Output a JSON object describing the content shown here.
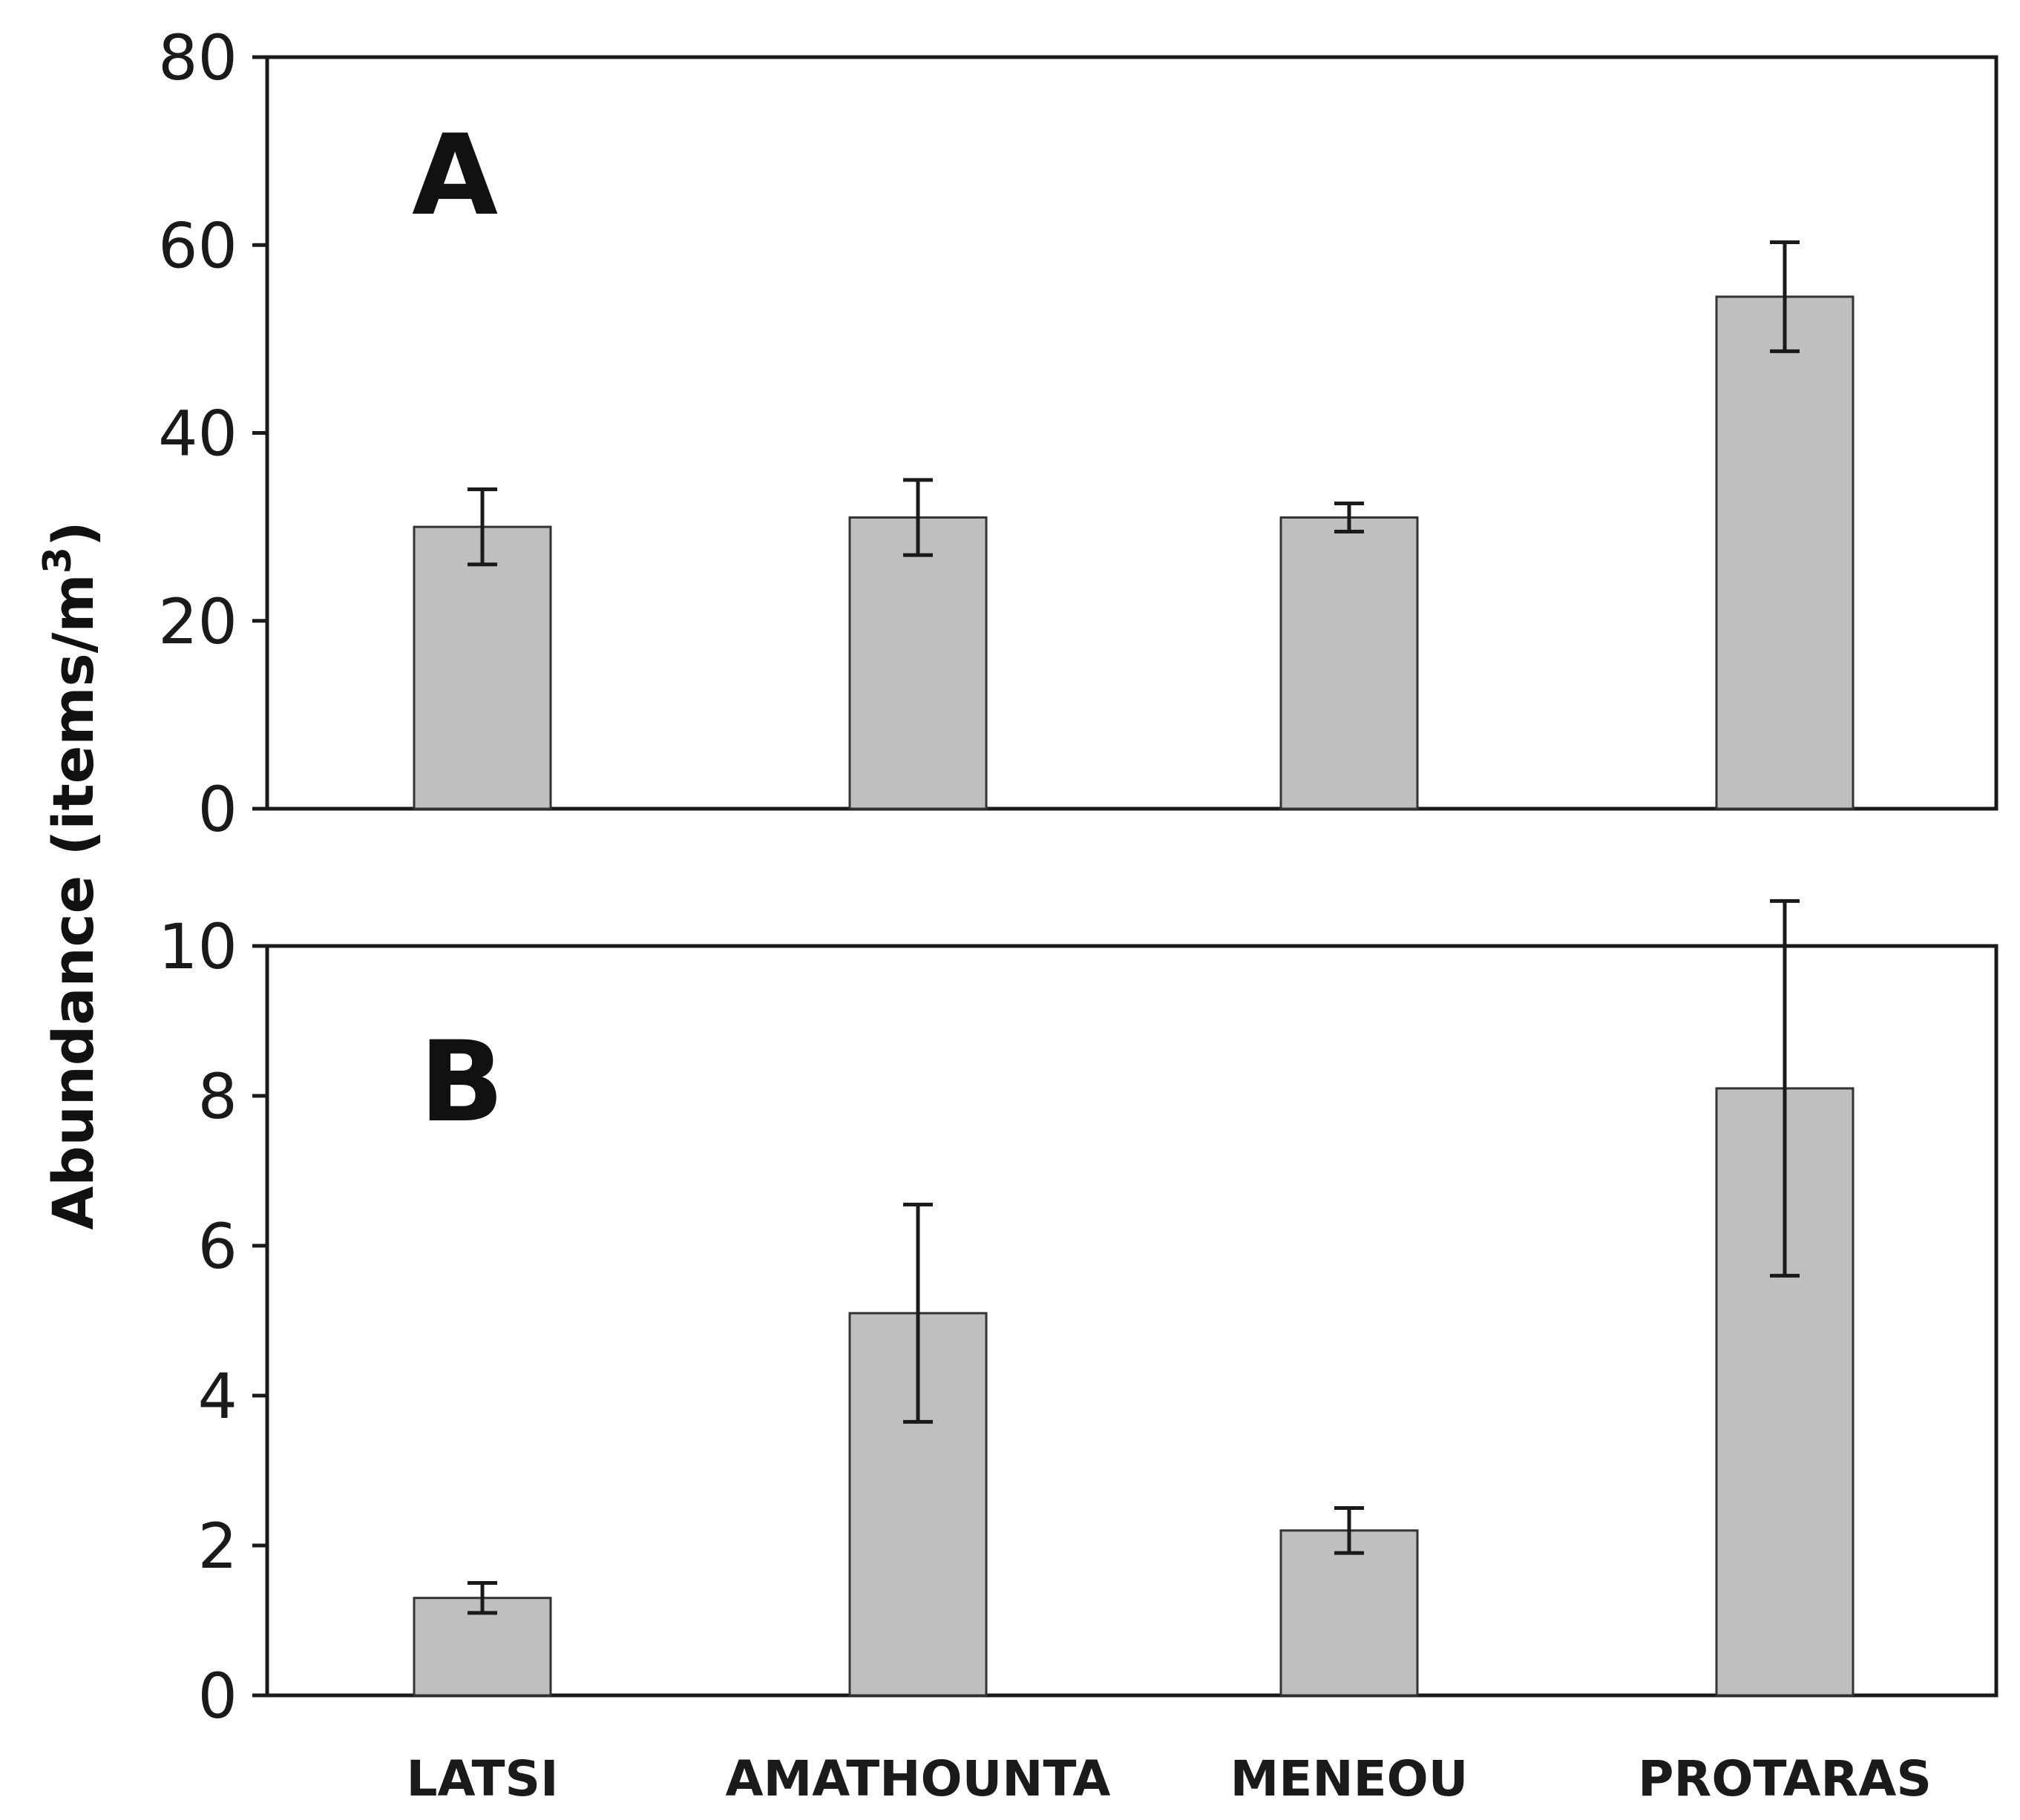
{
  "chart_data": [
    {
      "type": "bar",
      "panel_label": "A",
      "categories": [
        "LATSI",
        "AMATHOUNTA",
        "MENEOU",
        "PROTARAS"
      ],
      "values": [
        30,
        31,
        31,
        54.5
      ],
      "error": [
        4,
        4,
        1.5,
        5.8
      ],
      "ylim": [
        0,
        80
      ],
      "yticks": [
        0,
        20,
        40,
        60,
        80
      ],
      "bar_color": "#bfbfbf"
    },
    {
      "type": "bar",
      "panel_label": "B",
      "categories": [
        "LATSI",
        "AMATHOUNTA",
        "MENEOU",
        "PROTARAS"
      ],
      "values": [
        1.3,
        5.1,
        2.2,
        8.1
      ],
      "error": [
        0.2,
        1.45,
        0.3,
        2.5
      ],
      "ylim": [
        0,
        10
      ],
      "yticks": [
        0,
        2,
        4,
        6,
        8,
        10
      ],
      "bar_color": "#bfbfbf"
    }
  ],
  "ylabel_main": "Abundance (items/m",
  "ylabel_sup": "3",
  "ylabel_close": ")",
  "categories": [
    "LATSI",
    "AMATHOUNTA",
    "MENEOU",
    "PROTARAS"
  ]
}
